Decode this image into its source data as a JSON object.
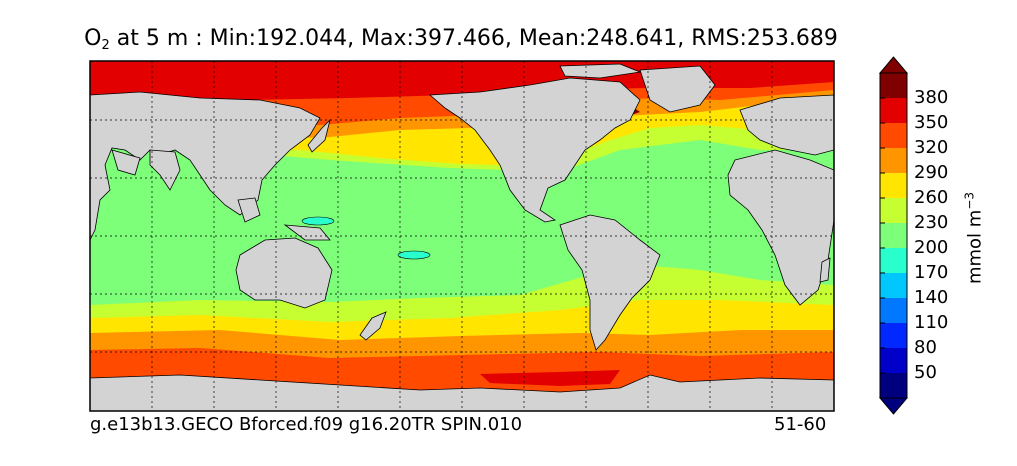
{
  "title": {
    "variable": "O",
    "subscript": "2",
    "rest": " at 5 m : Min:192.044, Max:397.466, Mean:248.641, RMS:253.689"
  },
  "caption": {
    "left": "g.e13b13.GECO Bforced.f09 g16.20TR SPIN.010",
    "right": "51-60"
  },
  "colorbar": {
    "units": "mmol m",
    "units_exponent": "−3",
    "ticks": [
      "50",
      "80",
      "110",
      "140",
      "170",
      "200",
      "230",
      "260",
      "290",
      "320",
      "350",
      "380"
    ],
    "colors": [
      "#00007f",
      "#0000c8",
      "#0028ff",
      "#0078ff",
      "#00c8ff",
      "#29ffcd",
      "#7dff7a",
      "#c6ff31",
      "#ffe500",
      "#ff9600",
      "#ff4a00",
      "#e30000",
      "#7f0000"
    ],
    "under_color": "#00007f",
    "over_color": "#7f0000"
  },
  "map": {
    "land_color": "#d3d3d3",
    "projection": "cylindrical",
    "gridlines": true
  }
}
